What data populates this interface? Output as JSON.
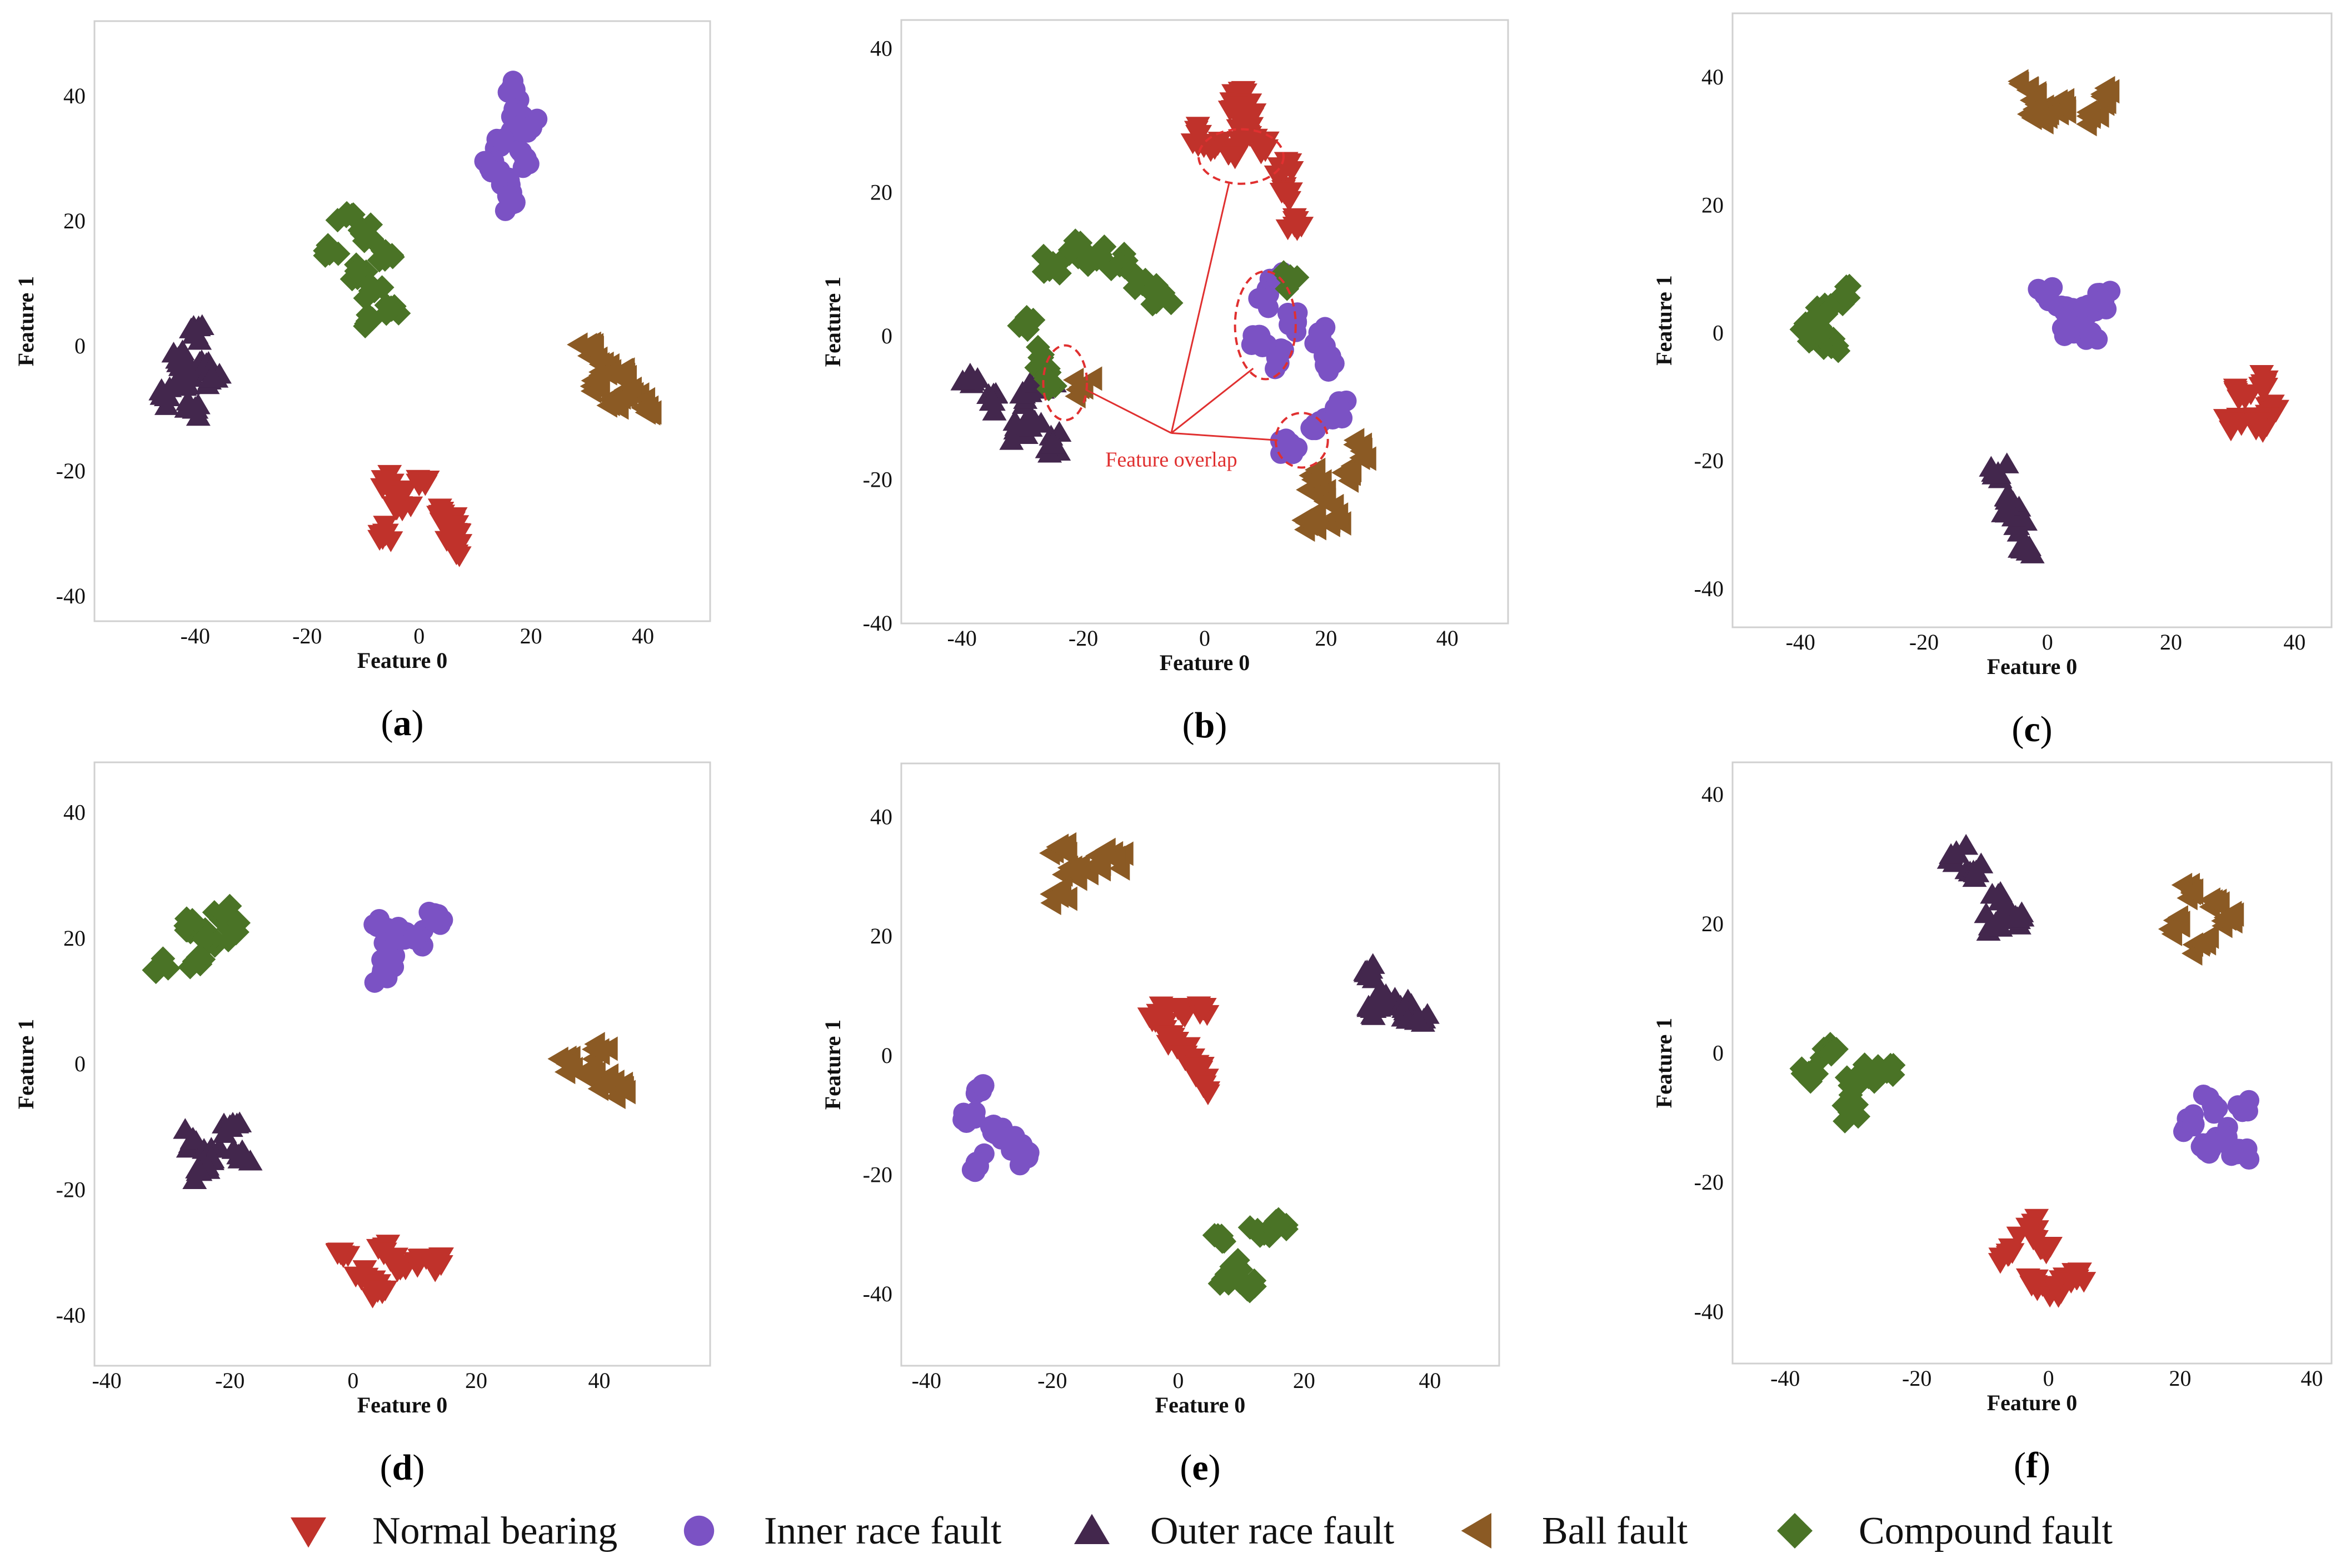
{
  "legend": {
    "entries": [
      {
        "label": "Normal bearing",
        "marker": "triangle-down",
        "color": "#c0322b"
      },
      {
        "label": "Inner race fault",
        "marker": "circle",
        "color": "#7b52c4"
      },
      {
        "label": "Outer race fault",
        "marker": "triangle-up",
        "color": "#43274d"
      },
      {
        "label": "Ball fault",
        "marker": "triangle-left",
        "color": "#8b5a24"
      },
      {
        "label": "Compound fault",
        "marker": "diamond",
        "color": "#4a7326"
      }
    ]
  },
  "chart_data": [
    {
      "panel": "a",
      "type": "scatter",
      "xlabel": "Feature 0",
      "ylabel": "Feature 1",
      "xlim": [
        -58,
        52
      ],
      "ylim": [
        -44,
        52
      ],
      "xticks": [
        -40,
        -20,
        0,
        20,
        40
      ],
      "yticks": [
        -40,
        -20,
        0,
        20,
        40
      ],
      "clusters": [
        {
          "class": "Normal bearing",
          "points": [
            [
              -5,
              -22
            ],
            [
              -3,
              -26
            ],
            [
              -6,
              -30
            ],
            [
              -4,
              -24
            ],
            [
              0,
              -22
            ],
            [
              5,
              -28
            ],
            [
              7,
              -30
            ],
            [
              6,
              -32
            ],
            [
              4,
              -27
            ]
          ]
        },
        {
          "class": "Inner race fault",
          "points": [
            [
              17,
              41
            ],
            [
              18,
              37
            ],
            [
              15,
              33
            ],
            [
              19,
              30
            ],
            [
              16,
              26
            ],
            [
              17,
              23
            ],
            [
              13,
              28
            ],
            [
              20,
              35
            ]
          ]
        },
        {
          "class": "Outer race fault",
          "points": [
            [
              -40,
              2
            ],
            [
              -38,
              -3
            ],
            [
              -42,
              -6
            ],
            [
              -45,
              -8
            ],
            [
              -40,
              -10
            ],
            [
              -37,
              -5
            ],
            [
              -43,
              -2
            ]
          ]
        },
        {
          "class": "Ball fault",
          "points": [
            [
              30,
              0
            ],
            [
              33,
              -3
            ],
            [
              36,
              -5
            ],
            [
              38,
              -7
            ],
            [
              41,
              -10
            ],
            [
              35,
              -9
            ],
            [
              32,
              -6
            ]
          ]
        },
        {
          "class": "Compound fault",
          "points": [
            [
              -13,
              21
            ],
            [
              -10,
              18
            ],
            [
              -16,
              15
            ],
            [
              -11,
              12
            ],
            [
              -6,
              15
            ],
            [
              -8,
              9
            ],
            [
              -9,
              4
            ],
            [
              -5,
              6
            ]
          ]
        }
      ]
    },
    {
      "panel": "b",
      "type": "scatter",
      "xlabel": "Feature 0",
      "ylabel": "Feature 1",
      "xlim": [
        -50,
        50
      ],
      "ylim": [
        -40,
        44
      ],
      "xticks": [
        -40,
        -20,
        0,
        20,
        40
      ],
      "yticks": [
        -40,
        -20,
        0,
        20,
        40
      ],
      "annotation": "Feature overlap",
      "clusters": [
        {
          "class": "Normal bearing",
          "points": [
            [
              6,
              34
            ],
            [
              8,
              31
            ],
            [
              5,
              32
            ],
            [
              7,
              28
            ],
            [
              1,
              26
            ],
            [
              5,
              25
            ],
            [
              14,
              20
            ],
            [
              15,
              16
            ],
            [
              13,
              23
            ],
            [
              -1,
              28
            ],
            [
              10,
              26
            ]
          ]
        },
        {
          "class": "Inner race fault",
          "points": [
            [
              10,
              5
            ],
            [
              12,
              8
            ],
            [
              15,
              2
            ],
            [
              19,
              0
            ],
            [
              20,
              -4
            ],
            [
              9,
              0
            ],
            [
              12,
              -3
            ],
            [
              22,
              -10
            ],
            [
              19,
              -12
            ],
            [
              14,
              -15
            ]
          ]
        },
        {
          "class": "Outer race fault",
          "points": [
            [
              -39,
              -6
            ],
            [
              -35,
              -9
            ],
            [
              -31,
              -13
            ],
            [
              -28,
              -12
            ],
            [
              -25,
              -15
            ],
            [
              -30,
              -8
            ],
            [
              -26,
              -6
            ]
          ]
        },
        {
          "class": "Ball fault",
          "points": [
            [
              18,
              -20
            ],
            [
              20,
              -23
            ],
            [
              22,
              -25
            ],
            [
              17,
              -26
            ],
            [
              24,
              -19
            ],
            [
              26,
              -16
            ],
            [
              -20,
              -7
            ]
          ]
        },
        {
          "class": "Compound fault",
          "points": [
            [
              -25,
              10
            ],
            [
              -22,
              12
            ],
            [
              -18,
              11
            ],
            [
              -14,
              10
            ],
            [
              -11,
              8
            ],
            [
              -7,
              6
            ],
            [
              -29,
              2
            ],
            [
              -27,
              -3
            ],
            [
              -26,
              -6
            ],
            [
              14,
              8
            ]
          ]
        }
      ]
    },
    {
      "panel": "c",
      "type": "scatter",
      "xlabel": "Feature 0",
      "ylabel": "Feature 1",
      "xlim": [
        -51,
        46
      ],
      "ylim": [
        -46,
        50
      ],
      "xticks": [
        -40,
        -20,
        0,
        20,
        40
      ],
      "yticks": [
        -40,
        -20,
        0,
        20,
        40
      ],
      "clusters": [
        {
          "class": "Normal bearing",
          "points": [
            [
              32,
              -10
            ],
            [
              35,
              -8
            ],
            [
              37,
              -12
            ],
            [
              30,
              -14
            ],
            [
              34,
              -14
            ]
          ]
        },
        {
          "class": "Inner race fault",
          "points": [
            [
              0,
              6
            ],
            [
              3,
              4
            ],
            [
              6,
              3
            ],
            [
              9,
              5
            ],
            [
              4,
              1
            ],
            [
              7,
              0
            ]
          ]
        },
        {
          "class": "Outer race fault",
          "points": [
            [
              -8,
              -22
            ],
            [
              -6,
              -26
            ],
            [
              -5,
              -30
            ],
            [
              -3,
              -34
            ],
            [
              -7,
              -28
            ]
          ]
        },
        {
          "class": "Ball fault",
          "points": [
            [
              -3,
              38
            ],
            [
              0,
              34
            ],
            [
              3,
              35
            ],
            [
              7,
              34
            ],
            [
              9,
              37
            ],
            [
              -2,
              35
            ]
          ]
        },
        {
          "class": "Compound fault",
          "points": [
            [
              -39,
              0
            ],
            [
              -36,
              3
            ],
            [
              -33,
              6
            ],
            [
              -35,
              -2
            ],
            [
              -37,
              1
            ]
          ]
        }
      ]
    },
    {
      "panel": "d",
      "type": "scatter",
      "xlabel": "Feature 0",
      "ylabel": "Feature 1",
      "xlim": [
        -42,
        58
      ],
      "ylim": [
        -48,
        48
      ],
      "xticks": [
        -40,
        -20,
        0,
        20,
        40
      ],
      "yticks": [
        -40,
        -20,
        0,
        20,
        40
      ],
      "clusters": [
        {
          "class": "Normal bearing",
          "points": [
            [
              2,
              -34
            ],
            [
              5,
              -30
            ],
            [
              8,
              -32
            ],
            [
              11,
              -31
            ],
            [
              4,
              -36
            ],
            [
              13,
              -32
            ],
            [
              -2,
              -30
            ]
          ]
        },
        {
          "class": "Inner race fault",
          "points": [
            [
              4,
              22
            ],
            [
              6,
              18
            ],
            [
              8,
              21
            ],
            [
              5,
              14
            ],
            [
              10,
              20
            ],
            [
              13,
              23
            ]
          ]
        },
        {
          "class": "Outer race fault",
          "points": [
            [
              -26,
              -12
            ],
            [
              -23,
              -15
            ],
            [
              -20,
              -10
            ],
            [
              -25,
              -17
            ],
            [
              -18,
              -14
            ]
          ]
        },
        {
          "class": "Ball fault",
          "points": [
            [
              35,
              0
            ],
            [
              38,
              -2
            ],
            [
              41,
              -3
            ],
            [
              44,
              -4
            ],
            [
              40,
              2
            ]
          ]
        },
        {
          "class": "Compound fault",
          "points": [
            [
              -27,
              22
            ],
            [
              -24,
              20
            ],
            [
              -21,
              24
            ],
            [
              -19,
              21
            ],
            [
              -25,
              17
            ],
            [
              -31,
              16
            ]
          ]
        }
      ]
    },
    {
      "panel": "e",
      "type": "scatter",
      "xlabel": "Feature 0",
      "ylabel": "Feature 1",
      "xlim": [
        -44,
        51
      ],
      "ylim": [
        -52,
        49
      ],
      "xticks": [
        -40,
        -20,
        0,
        20,
        40
      ],
      "yticks": [
        -40,
        -20,
        0,
        20,
        40
      ],
      "clusters": [
        {
          "class": "Normal bearing",
          "points": [
            [
              -3,
              7
            ],
            [
              0,
              8
            ],
            [
              -1,
              3
            ],
            [
              1,
              0
            ],
            [
              3,
              -3
            ],
            [
              4,
              -5
            ],
            [
              4,
              8
            ]
          ]
        },
        {
          "class": "Inner race fault",
          "points": [
            [
              -31,
              -5
            ],
            [
              -33,
              -10
            ],
            [
              -29,
              -13
            ],
            [
              -26,
              -15
            ],
            [
              -24,
              -17
            ],
            [
              -32,
              -18
            ]
          ]
        },
        {
          "class": "Outer race fault",
          "points": [
            [
              30,
              14
            ],
            [
              33,
              10
            ],
            [
              36,
              8
            ],
            [
              38,
              6
            ],
            [
              31,
              8
            ]
          ]
        },
        {
          "class": "Ball fault",
          "points": [
            [
              -19,
              35
            ],
            [
              -17,
              31
            ],
            [
              -13,
              32
            ],
            [
              -10,
              33
            ],
            [
              -19,
              27
            ]
          ]
        },
        {
          "class": "Compound fault",
          "points": [
            [
              7,
              -31
            ],
            [
              9,
              -35
            ],
            [
              13,
              -30
            ],
            [
              16,
              -28
            ],
            [
              8,
              -38
            ],
            [
              11,
              -39
            ]
          ]
        }
      ]
    },
    {
      "panel": "f",
      "type": "scatter",
      "xlabel": "Feature 0",
      "ylabel": "Feature 1",
      "xlim": [
        -48,
        43
      ],
      "ylim": [
        -48,
        45
      ],
      "xticks": [
        -40,
        -20,
        0,
        20,
        40
      ],
      "yticks": [
        -40,
        -20,
        0,
        20,
        40
      ],
      "clusters": [
        {
          "class": "Normal bearing",
          "points": [
            [
              -3,
              -27
            ],
            [
              -1,
              -30
            ],
            [
              -6,
              -31
            ],
            [
              -2,
              -35
            ],
            [
              1,
              -36
            ],
            [
              4,
              -34
            ]
          ]
        },
        {
          "class": "Inner race fault",
          "points": [
            [
              22,
              -11
            ],
            [
              25,
              -8
            ],
            [
              27,
              -13
            ],
            [
              29,
              -15
            ],
            [
              24,
              -15
            ],
            [
              30,
              -8
            ]
          ]
        },
        {
          "class": "Outer race fault",
          "points": [
            [
              -14,
              31
            ],
            [
              -11,
              28
            ],
            [
              -7,
              24
            ],
            [
              -5,
              21
            ],
            [
              -8,
              20
            ]
          ]
        },
        {
          "class": "Ball fault",
          "points": [
            [
              20,
              20
            ],
            [
              23,
              17
            ],
            [
              26,
              23
            ],
            [
              27,
              21
            ],
            [
              22,
              25
            ]
          ]
        },
        {
          "class": "Compound fault",
          "points": [
            [
              -36,
              -3
            ],
            [
              -33,
              0
            ],
            [
              -30,
              -5
            ],
            [
              -27,
              -3
            ],
            [
              -24,
              -2
            ],
            [
              -30,
              -9
            ]
          ]
        }
      ]
    }
  ]
}
